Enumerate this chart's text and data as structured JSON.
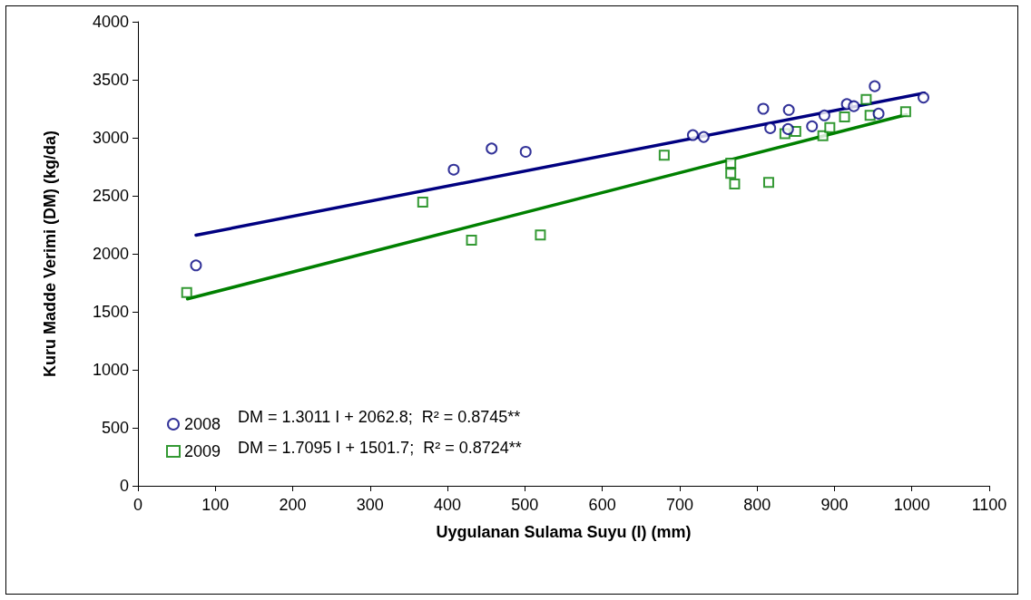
{
  "chart_data": {
    "type": "scatter",
    "xlabel": "Uygulanan Sulama Suyu (I) (mm)",
    "ylabel": "Kuru Madde Verimi (DM) (kg/da)",
    "xlim": [
      0,
      1100
    ],
    "xticks": [
      0,
      100,
      200,
      300,
      400,
      500,
      600,
      700,
      800,
      900,
      1000,
      1100
    ],
    "ylim": [
      0,
      4000
    ],
    "yticks": [
      0,
      500,
      1000,
      1500,
      2000,
      2500,
      3000,
      3500,
      4000
    ],
    "grid": false,
    "legend": "bottom left",
    "annotations": [
      "DM = 1.3011 I + 2062.8;  R² = 0.8745**",
      "DM = 1.7095 I + 1501.7;  R² = 0.8724**"
    ],
    "series": [
      {
        "name": "2008",
        "type": "scatter",
        "marker": "circle",
        "color": "#000080",
        "x": [
          75,
          408,
          457,
          501,
          717,
          731,
          808,
          817,
          840,
          841,
          871,
          887,
          916,
          925,
          952,
          957,
          1015
        ],
        "values": [
          1900,
          2725,
          2907,
          2879,
          3023,
          3007,
          3250,
          3083,
          3075,
          3240,
          3099,
          3193,
          3290,
          3272,
          3444,
          3208,
          3347
        ]
      },
      {
        "name": "2009",
        "type": "scatter",
        "marker": "square",
        "color": "#008000",
        "x": [
          63,
          368,
          431,
          520,
          680,
          766,
          766,
          771,
          815,
          836,
          850,
          885,
          894,
          913,
          941,
          946,
          992
        ],
        "values": [
          1666,
          2445,
          2118,
          2162,
          2850,
          2782,
          2693,
          2602,
          2615,
          3036,
          3054,
          3018,
          3088,
          3180,
          3331,
          3193,
          3225
        ]
      },
      {
        "type": "line",
        "marker": "none",
        "color": "#000080",
        "x": [
          75,
          1016
        ],
        "values": [
          2160,
          3385
        ]
      },
      {
        "type": "line",
        "marker": "none",
        "color": "#008000",
        "x": [
          64,
          993
        ],
        "values": [
          1611,
          3199
        ]
      }
    ]
  }
}
